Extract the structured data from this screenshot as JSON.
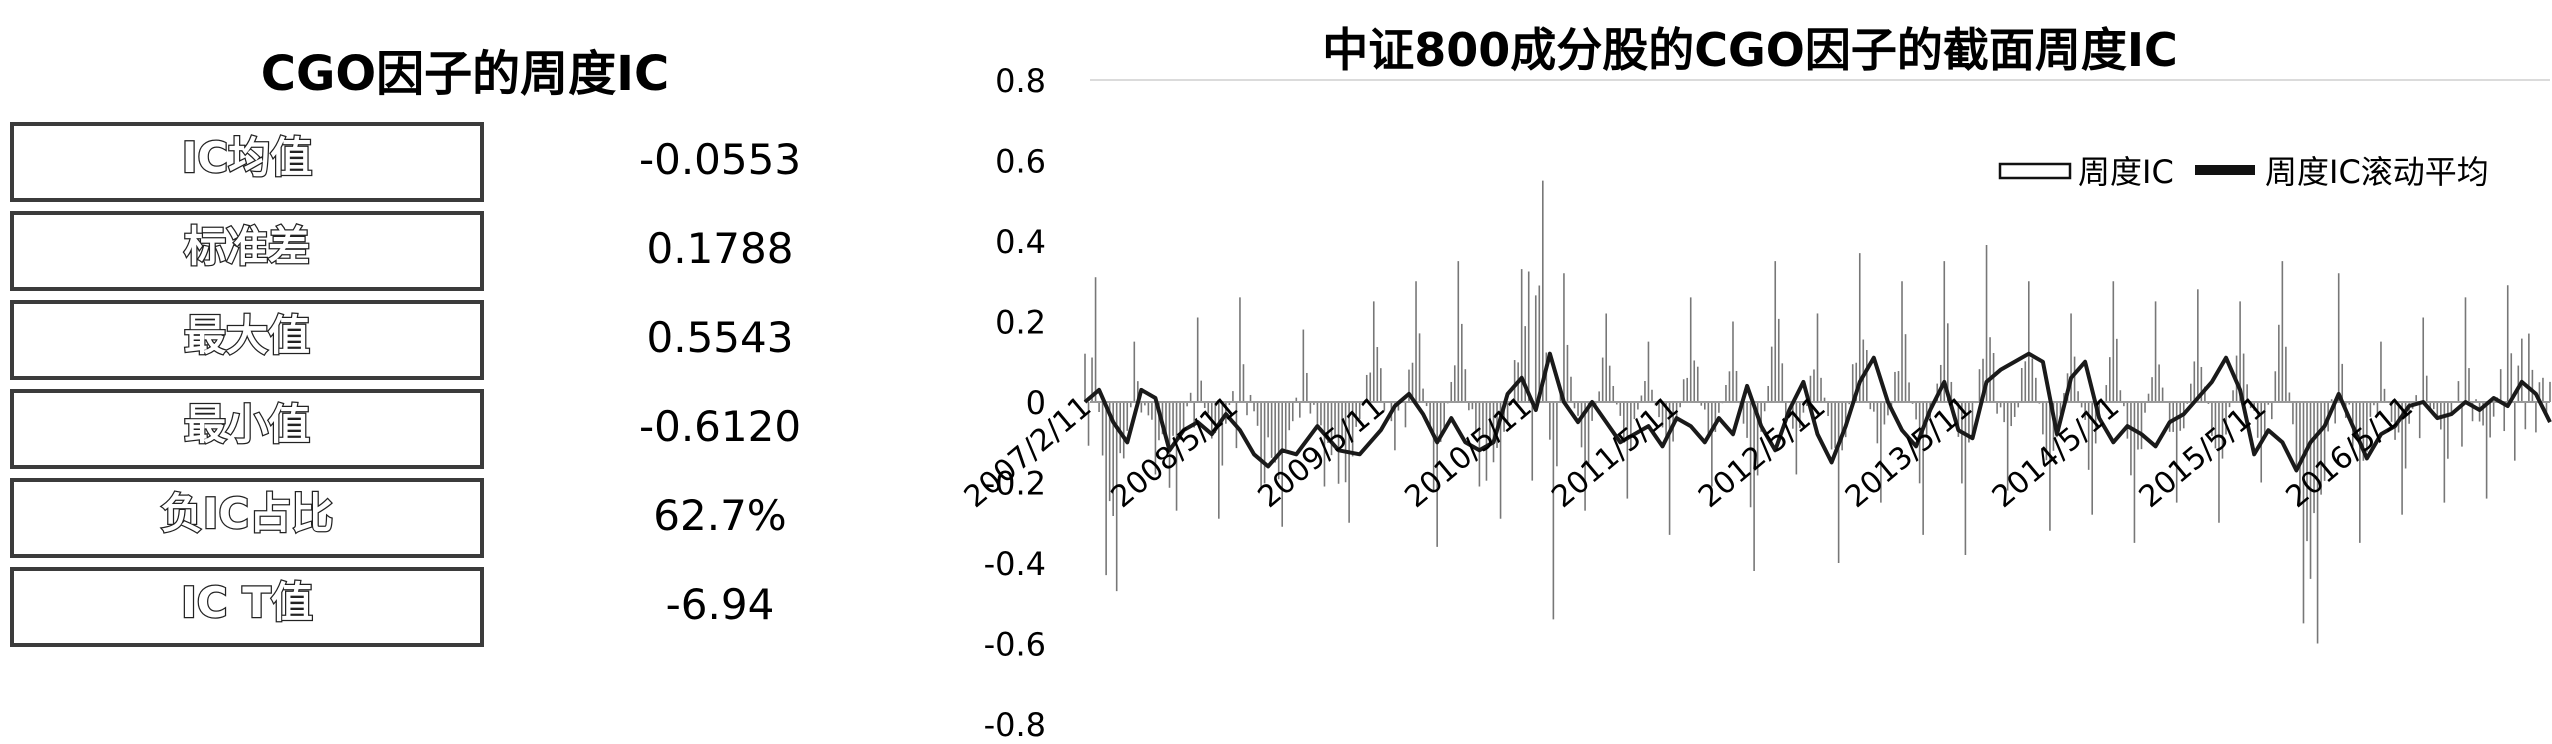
{
  "stats_table": {
    "title": "CGO因子的周度IC",
    "rows": [
      {
        "label": "IC均值",
        "value": "-0.0553"
      },
      {
        "label": "标准差",
        "value": "0.1788"
      },
      {
        "label": "最大值",
        "value": "0.5543"
      },
      {
        "label": "最小值",
        "value": "-0.6120"
      },
      {
        "label": "负IC占比",
        "value": "62.7%"
      },
      {
        "label": "IC T值",
        "value": "-6.94"
      }
    ]
  },
  "chart_data": {
    "type": "bar",
    "title": "中证800成分股的CGO因子的截面周度IC",
    "ylim": [
      -0.8,
      0.8
    ],
    "yticks": [
      "0.8",
      "0.6",
      "0.4",
      "0.2",
      "0",
      "-0.2",
      "-0.4",
      "-0.6",
      "-0.8"
    ],
    "xticklabels": [
      "2007/2/11",
      "2008/5/11",
      "2009/5/11",
      "2010/5/11",
      "2011/5/11",
      "2012/5/11",
      "2013/5/11",
      "2014/5/11",
      "2015/5/11",
      "2016/5/11"
    ],
    "legend": {
      "position": "top-right"
    },
    "grid": false,
    "colors": {
      "bars": "#777777",
      "line": "#1a1a1a",
      "axis": "#999999"
    },
    "series": [
      {
        "name": "周度IC",
        "kind": "bar",
        "anchors": [
          [
            0,
            0.12
          ],
          [
            3,
            0.31
          ],
          [
            6,
            -0.43
          ],
          [
            9,
            -0.47
          ],
          [
            14,
            0.15
          ],
          [
            20,
            -0.18
          ],
          [
            26,
            -0.27
          ],
          [
            32,
            0.21
          ],
          [
            38,
            -0.29
          ],
          [
            44,
            0.26
          ],
          [
            50,
            -0.22
          ],
          [
            56,
            -0.31
          ],
          [
            62,
            0.18
          ],
          [
            68,
            -0.21
          ],
          [
            75,
            -0.3
          ],
          [
            82,
            0.25
          ],
          [
            88,
            -0.12
          ],
          [
            94,
            0.3
          ],
          [
            100,
            -0.36
          ],
          [
            106,
            0.35
          ],
          [
            112,
            -0.21
          ],
          [
            118,
            -0.29
          ],
          [
            124,
            0.33
          ],
          [
            130,
            0.55
          ],
          [
            133,
            -0.54
          ],
          [
            136,
            0.32
          ],
          [
            142,
            -0.27
          ],
          [
            148,
            0.22
          ],
          [
            154,
            -0.24
          ],
          [
            160,
            0.15
          ],
          [
            166,
            -0.33
          ],
          [
            172,
            0.26
          ],
          [
            178,
            -0.21
          ],
          [
            184,
            0.2
          ],
          [
            190,
            -0.42
          ],
          [
            196,
            0.35
          ],
          [
            202,
            -0.18
          ],
          [
            208,
            0.22
          ],
          [
            214,
            -0.4
          ],
          [
            220,
            0.37
          ],
          [
            226,
            -0.25
          ],
          [
            232,
            0.3
          ],
          [
            238,
            -0.33
          ],
          [
            244,
            0.35
          ],
          [
            250,
            -0.38
          ],
          [
            256,
            0.39
          ],
          [
            262,
            -0.22
          ],
          [
            268,
            0.3
          ],
          [
            274,
            -0.32
          ],
          [
            280,
            0.22
          ],
          [
            286,
            -0.28
          ],
          [
            292,
            0.3
          ],
          [
            298,
            -0.35
          ],
          [
            304,
            0.25
          ],
          [
            310,
            -0.25
          ],
          [
            316,
            0.28
          ],
          [
            322,
            -0.3
          ],
          [
            328,
            0.25
          ],
          [
            334,
            -0.2
          ],
          [
            340,
            0.35
          ],
          [
            346,
            -0.55
          ],
          [
            350,
            -0.6
          ],
          [
            356,
            0.32
          ],
          [
            362,
            -0.35
          ],
          [
            368,
            0.15
          ],
          [
            374,
            -0.28
          ],
          [
            380,
            0.21
          ],
          [
            386,
            -0.25
          ],
          [
            392,
            0.26
          ],
          [
            398,
            -0.24
          ],
          [
            404,
            0.29
          ],
          [
            410,
            0.17
          ],
          [
            416,
            0.05
          ]
        ],
        "n_weeks": 417
      },
      {
        "name": "周度IC滚动平均",
        "kind": "line",
        "anchors": [
          [
            0,
            0.0
          ],
          [
            4,
            0.03
          ],
          [
            8,
            -0.05
          ],
          [
            12,
            -0.1
          ],
          [
            16,
            0.03
          ],
          [
            20,
            0.01
          ],
          [
            24,
            -0.12
          ],
          [
            28,
            -0.07
          ],
          [
            32,
            -0.05
          ],
          [
            36,
            -0.08
          ],
          [
            40,
            -0.03
          ],
          [
            44,
            -0.07
          ],
          [
            48,
            -0.13
          ],
          [
            52,
            -0.16
          ],
          [
            56,
            -0.12
          ],
          [
            60,
            -0.13
          ],
          [
            66,
            -0.06
          ],
          [
            72,
            -0.12
          ],
          [
            78,
            -0.13
          ],
          [
            84,
            -0.07
          ],
          [
            88,
            -0.01
          ],
          [
            92,
            0.02
          ],
          [
            96,
            -0.03
          ],
          [
            100,
            -0.1
          ],
          [
            104,
            -0.04
          ],
          [
            108,
            -0.1
          ],
          [
            112,
            -0.12
          ],
          [
            116,
            -0.1
          ],
          [
            120,
            0.02
          ],
          [
            124,
            0.06
          ],
          [
            128,
            -0.02
          ],
          [
            132,
            0.12
          ],
          [
            136,
            0.0
          ],
          [
            140,
            -0.05
          ],
          [
            144,
            0.0
          ],
          [
            148,
            -0.05
          ],
          [
            152,
            -0.1
          ],
          [
            156,
            -0.08
          ],
          [
            160,
            -0.06
          ],
          [
            164,
            -0.11
          ],
          [
            168,
            -0.04
          ],
          [
            172,
            -0.06
          ],
          [
            176,
            -0.1
          ],
          [
            180,
            -0.04
          ],
          [
            184,
            -0.08
          ],
          [
            188,
            0.04
          ],
          [
            192,
            -0.06
          ],
          [
            196,
            -0.12
          ],
          [
            200,
            -0.02
          ],
          [
            204,
            0.05
          ],
          [
            208,
            -0.08
          ],
          [
            212,
            -0.15
          ],
          [
            216,
            -0.06
          ],
          [
            220,
            0.05
          ],
          [
            224,
            0.11
          ],
          [
            228,
            0.0
          ],
          [
            232,
            -0.07
          ],
          [
            236,
            -0.11
          ],
          [
            240,
            -0.02
          ],
          [
            244,
            0.05
          ],
          [
            248,
            -0.07
          ],
          [
            252,
            -0.09
          ],
          [
            256,
            0.05
          ],
          [
            260,
            0.08
          ],
          [
            264,
            0.1
          ],
          [
            268,
            0.12
          ],
          [
            272,
            0.1
          ],
          [
            276,
            -0.08
          ],
          [
            280,
            0.06
          ],
          [
            284,
            0.1
          ],
          [
            288,
            -0.04
          ],
          [
            292,
            -0.1
          ],
          [
            296,
            -0.06
          ],
          [
            300,
            -0.08
          ],
          [
            304,
            -0.11
          ],
          [
            308,
            -0.05
          ],
          [
            312,
            -0.03
          ],
          [
            316,
            0.01
          ],
          [
            320,
            0.05
          ],
          [
            324,
            0.11
          ],
          [
            328,
            0.03
          ],
          [
            332,
            -0.13
          ],
          [
            336,
            -0.07
          ],
          [
            340,
            -0.1
          ],
          [
            344,
            -0.17
          ],
          [
            348,
            -0.1
          ],
          [
            352,
            -0.06
          ],
          [
            356,
            0.02
          ],
          [
            360,
            -0.06
          ],
          [
            364,
            -0.14
          ],
          [
            368,
            -0.08
          ],
          [
            372,
            -0.06
          ],
          [
            376,
            -0.01
          ],
          [
            380,
            0.0
          ],
          [
            384,
            -0.04
          ],
          [
            388,
            -0.03
          ],
          [
            392,
            0.0
          ],
          [
            396,
            -0.02
          ],
          [
            400,
            0.01
          ],
          [
            404,
            -0.01
          ],
          [
            408,
            0.05
          ],
          [
            412,
            0.02
          ],
          [
            416,
            -0.05
          ]
        ]
      }
    ]
  }
}
